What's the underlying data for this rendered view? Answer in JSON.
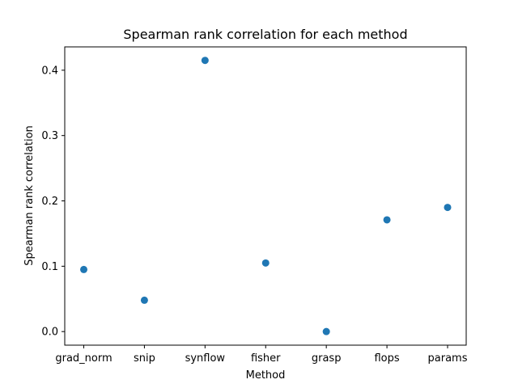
{
  "chart_data": {
    "type": "scatter",
    "title": "Spearman rank correlation for each method",
    "xlabel": "Method",
    "ylabel": "Spearman rank correlation",
    "categories": [
      "grad_norm",
      "snip",
      "synflow",
      "fisher",
      "grasp",
      "flops",
      "params"
    ],
    "values": [
      0.095,
      0.048,
      0.415,
      0.105,
      0.0,
      0.171,
      0.19
    ],
    "yticks": [
      "0.0",
      "0.1",
      "0.2",
      "0.3",
      "0.4"
    ],
    "ylim": [
      -0.0208,
      0.4357
    ],
    "grid": false,
    "legend": "none"
  },
  "colors": {
    "marker": "#1f77b4",
    "axes": "#000000",
    "background": "#ffffff"
  }
}
